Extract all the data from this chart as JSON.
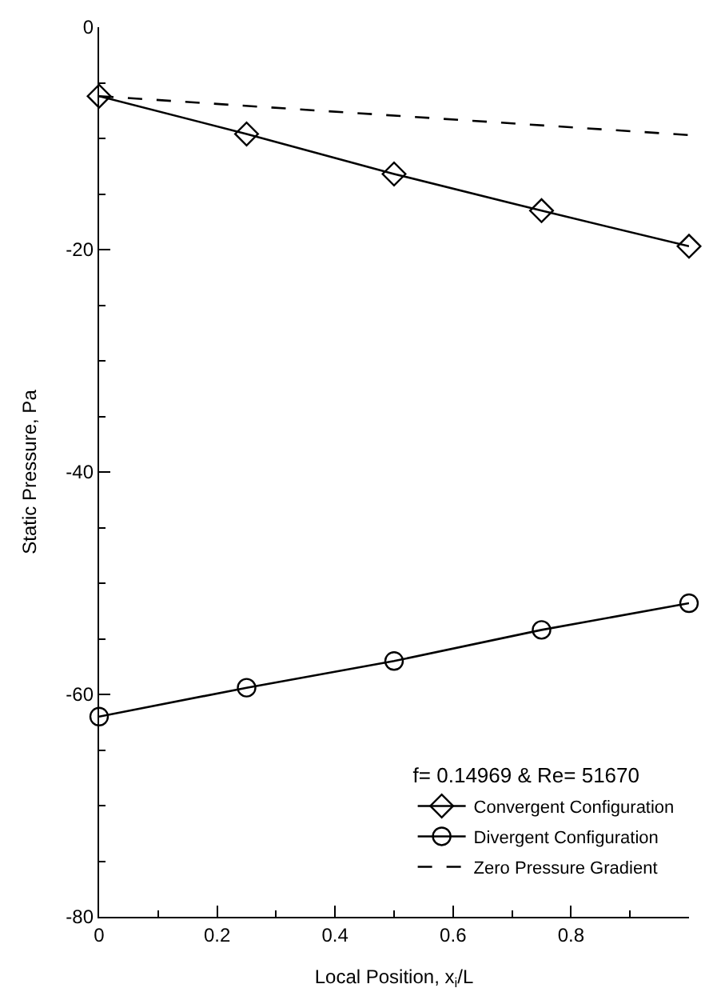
{
  "chart_data": {
    "type": "line",
    "xlabel": "Local Position, x$_{i}$/L",
    "ylabel": "Static Pressure, Pa",
    "legend_title": "f= 0.14969 & Re= 51670",
    "legend": "bottom right",
    "x": [
      0,
      0.25,
      0.5,
      0.75,
      1
    ],
    "series": [
      {
        "name": "Convergent Configuration",
        "color": "#000000",
        "marker": "diamond",
        "line_style": "solid",
        "values": [
          -6.2,
          -9.6,
          -13.2,
          -16.5,
          -19.7
        ]
      },
      {
        "name": "Divergent Configuration",
        "color": "#000000",
        "marker": "circle",
        "line_style": "solid",
        "values": [
          -62.0,
          -59.4,
          -57.0,
          -54.2,
          -51.8
        ]
      },
      {
        "name": "Zero Pressure Gradient",
        "color": "#000000",
        "marker": "none",
        "line_style": "dashed",
        "x": [
          0,
          1
        ],
        "values": [
          -6.2,
          -9.7
        ]
      }
    ],
    "xlim": [
      0,
      1
    ],
    "xticks": [
      0,
      0.2,
      0.4,
      0.6,
      0.8
    ],
    "ylim": [
      -80,
      0
    ],
    "yticks": [
      -80,
      -60,
      -40,
      -20,
      0
    ]
  }
}
